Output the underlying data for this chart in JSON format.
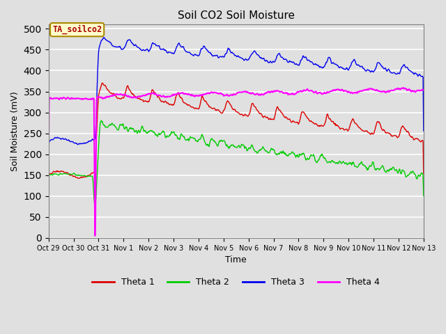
{
  "title": "Soil CO2 Soil Moisture",
  "xlabel": "Time",
  "ylabel": "Soil Moisture (mV)",
  "ylim": [
    0,
    510
  ],
  "yticks": [
    0,
    50,
    100,
    150,
    200,
    250,
    300,
    350,
    400,
    450,
    500
  ],
  "annotation_text": "TA_soilco2",
  "annotation_color": "#AA0000",
  "annotation_bg": "#FFFFCC",
  "annotation_edge": "#AA8800",
  "bg_color": "#E0E0E0",
  "plot_bg": "#E0E0E0",
  "line_colors": {
    "theta1": "#DD0000",
    "theta2": "#00CC00",
    "theta3": "#0000EE",
    "theta4": "#FF00FF"
  },
  "legend_labels": [
    "Theta 1",
    "Theta 2",
    "Theta 3",
    "Theta 4"
  ],
  "xtick_labels": [
    "Oct 29",
    "Oct 30",
    "Oct 31",
    "Nov 1",
    "Nov 2",
    "Nov 3",
    "Nov 4",
    "Nov 5",
    "Nov 6",
    "Nov 7",
    "Nov 8",
    "Nov 9",
    "Nov 10",
    "Nov 11",
    "Nov 12",
    "Nov 13"
  ]
}
